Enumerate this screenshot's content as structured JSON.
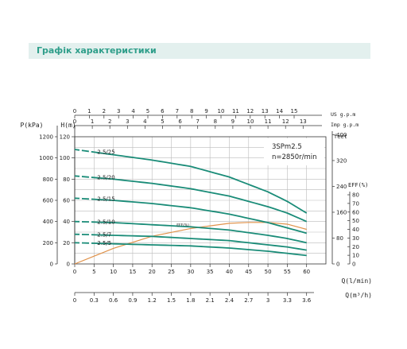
{
  "header": {
    "title": "Графік характеристики"
  },
  "colors": {
    "curve": "#1a8c78",
    "eff": "#e0924a",
    "header_bg": "#e3f0ee",
    "header_text": "#2e9e8a"
  },
  "chart_data": {
    "type": "line",
    "model_label": "3SPm2.5",
    "speed_label": "n=2850r/min",
    "axes": {
      "q_lmin": {
        "label": "Q(l/min)",
        "ticks": [
          0,
          5,
          10,
          15,
          20,
          25,
          30,
          35,
          40,
          45,
          50,
          55,
          60
        ],
        "range": [
          0,
          65
        ]
      },
      "q_m3h": {
        "label": "Q(m³/h)",
        "ticks": [
          "0",
          "0.3",
          "0.6",
          "0.9",
          "1.2",
          "1.5",
          "1.8",
          "2.1",
          "2.4",
          "2.7",
          "3",
          "3.3",
          "3.6"
        ]
      },
      "us_gpm": {
        "label": "US g.p.m",
        "ticks": [
          "0",
          "1",
          "2",
          "3",
          "4",
          "5",
          "6",
          "7",
          "8",
          "9",
          "10",
          "11",
          "12",
          "13",
          "14",
          "15"
        ]
      },
      "imp_gpm": {
        "label": "Imp g.p.m",
        "ticks": [
          "0",
          "1",
          "2",
          "3",
          "4",
          "5",
          "6",
          "7",
          "8",
          "9",
          "10",
          "11",
          "12",
          "13"
        ]
      },
      "h_m": {
        "label": "H(m)",
        "ticks": [
          0,
          20,
          40,
          60,
          80,
          100,
          120
        ],
        "range": [
          0,
          120
        ]
      },
      "p_kpa": {
        "label": "P(kPa)",
        "ticks": [
          0,
          200,
          400,
          600,
          800,
          1000,
          1200
        ]
      },
      "feet": {
        "label": "feet",
        "ticks": [
          0,
          80,
          160,
          240,
          320,
          400
        ]
      },
      "eff": {
        "label": "EFF(%)",
        "ticks": [
          0,
          10,
          20,
          30,
          40,
          50,
          60,
          70,
          80
        ]
      }
    },
    "series": [
      {
        "name": "2.5/25",
        "x": [
          0,
          10,
          20,
          30,
          40,
          50,
          55,
          60
        ],
        "y": [
          108,
          103,
          98,
          92,
          82,
          68,
          59,
          48
        ]
      },
      {
        "name": "2.5/20",
        "x": [
          0,
          10,
          20,
          30,
          40,
          50,
          55,
          60
        ],
        "y": [
          83,
          80,
          76,
          71,
          64,
          54,
          48,
          40
        ]
      },
      {
        "name": "2.5/15",
        "x": [
          0,
          10,
          20,
          30,
          40,
          50,
          55,
          60
        ],
        "y": [
          62,
          60,
          57,
          53,
          47,
          39,
          34,
          29
        ]
      },
      {
        "name": "2.5/10",
        "x": [
          0,
          10,
          20,
          30,
          40,
          50,
          55,
          60
        ],
        "y": [
          40,
          39,
          37,
          35,
          32,
          27,
          24,
          20
        ]
      },
      {
        "name": "2.5/7",
        "x": [
          0,
          10,
          20,
          30,
          40,
          50,
          55,
          60
        ],
        "y": [
          28,
          27,
          26,
          24,
          22,
          18,
          16,
          13
        ]
      },
      {
        "name": "2.5/5",
        "x": [
          0,
          10,
          20,
          30,
          40,
          50,
          55,
          60
        ],
        "y": [
          20,
          19,
          18,
          17,
          15,
          12,
          10,
          8
        ]
      }
    ],
    "efficiency": {
      "name": "EFF(%)",
      "x": [
        0,
        10,
        20,
        30,
        40,
        45,
        50,
        55,
        60
      ],
      "y": [
        0,
        18,
        32,
        41,
        47,
        48,
        48,
        46,
        40
      ]
    }
  }
}
